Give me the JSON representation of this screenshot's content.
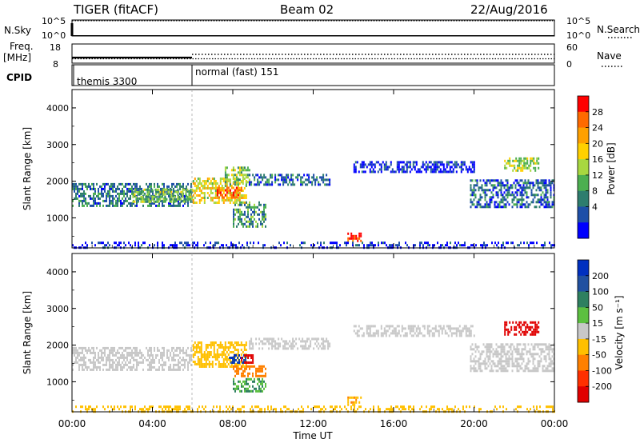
{
  "header": {
    "station": "TIGER (fitACF)",
    "beam": "Beam 02",
    "date": "22/Aug/2016"
  },
  "nsky_panel": {
    "left_label": "N.Sky",
    "right_label": "N.Search",
    "ticks_left": [
      "10^5",
      "10^0"
    ],
    "ticks_right": [
      "10^5",
      "10^0"
    ]
  },
  "freq_panel": {
    "left_label_1": "Freq.",
    "left_label_2": "[MHz]",
    "right_label": "Nave",
    "ticks_left": [
      "18",
      "8"
    ],
    "ticks_right": [
      "60",
      "0"
    ]
  },
  "cpid_panel": {
    "label": "CPID",
    "segments": [
      {
        "name": "themis 3300",
        "start_hour": 0
      },
      {
        "name": "normal (fast) 151",
        "start_hour": 6
      }
    ]
  },
  "power_panel": {
    "ylabel": "Slant Range [km]",
    "yticks": [
      "4000",
      "3000",
      "2000",
      "1000"
    ],
    "colorbar_label": "Power [dB]",
    "colorbar_ticks": [
      "28",
      "24",
      "20",
      "16",
      "12",
      "8",
      "4"
    ],
    "colors": [
      "#0000ff",
      "#1e4fa8",
      "#2e7d6e",
      "#4caf50",
      "#a8d840",
      "#ffd000",
      "#ffa000",
      "#ff6a00",
      "#ff0000"
    ]
  },
  "velocity_panel": {
    "ylabel": "Slant Range [km]",
    "yticks": [
      "4000",
      "3000",
      "2000",
      "1000"
    ],
    "colorbar_label": "Velocity [m s⁻¹]",
    "colorbar_ticks": [
      "200",
      "100",
      "50",
      "15",
      "-15",
      "-50",
      "-100",
      "-200"
    ],
    "colors": [
      "#0030c0",
      "#2050a0",
      "#2e8060",
      "#5cc040",
      "#c8c8c8",
      "#ffc000",
      "#ff8000",
      "#ff3000",
      "#e00000"
    ]
  },
  "xaxis": {
    "ticks": [
      "00:00",
      "04:00",
      "08:00",
      "12:00",
      "16:00",
      "20:00",
      "00:00"
    ],
    "label": "Time UT"
  },
  "chart_data": {
    "type": "heatmap",
    "title": "TIGER (fitACF) Beam 02 22/Aug/2016",
    "xlabel": "Time UT",
    "ylabel": "Slant Range [km]",
    "x_range_hours": [
      0,
      24
    ],
    "y_range_km": [
      180,
      4500
    ],
    "series": [
      {
        "name": "Power [dB]",
        "color_scale": [
          4,
          28
        ],
        "echo_regions": [
          {
            "t_start": 0.0,
            "t_end": 5.9,
            "r_low": 1350,
            "r_high": 1950,
            "value": 10
          },
          {
            "t_start": 3.0,
            "t_end": 6.0,
            "r_low": 1450,
            "r_high": 1800,
            "value": 14
          },
          {
            "t_start": 6.0,
            "t_end": 8.7,
            "r_low": 1400,
            "r_high": 2100,
            "value": 18
          },
          {
            "t_start": 7.2,
            "t_end": 8.4,
            "r_low": 1550,
            "r_high": 1850,
            "value": 24
          },
          {
            "t_start": 7.6,
            "t_end": 8.8,
            "r_low": 1900,
            "r_high": 2400,
            "value": 14
          },
          {
            "t_start": 8.0,
            "t_end": 9.6,
            "r_low": 750,
            "r_high": 1450,
            "value": 12
          },
          {
            "t_start": 8.8,
            "t_end": 12.8,
            "r_low": 1900,
            "r_high": 2200,
            "value": 9
          },
          {
            "t_start": 13.7,
            "t_end": 14.4,
            "r_low": 400,
            "r_high": 600,
            "value": 26
          },
          {
            "t_start": 14.0,
            "t_end": 20.0,
            "r_low": 2250,
            "r_high": 2550,
            "value": 6
          },
          {
            "t_start": 19.8,
            "t_end": 24.0,
            "r_low": 1300,
            "r_high": 2050,
            "value": 9
          },
          {
            "t_start": 21.5,
            "t_end": 23.2,
            "r_low": 2300,
            "r_high": 2650,
            "value": 16
          },
          {
            "t_start": 0.0,
            "t_end": 24.0,
            "r_low": 200,
            "r_high": 350,
            "value": 6
          }
        ]
      },
      {
        "name": "Velocity [m s⁻¹]",
        "color_scale": [
          -200,
          200
        ],
        "echo_regions": [
          {
            "t_start": 0.0,
            "t_end": 5.9,
            "r_low": 1350,
            "r_high": 1950,
            "value": 0
          },
          {
            "t_start": 6.0,
            "t_end": 8.7,
            "r_low": 1400,
            "r_high": 2100,
            "value": -30
          },
          {
            "t_start": 7.8,
            "t_end": 8.6,
            "r_low": 1500,
            "r_high": 1750,
            "value": 150
          },
          {
            "t_start": 8.4,
            "t_end": 9.0,
            "r_low": 1550,
            "r_high": 1750,
            "value": -200
          },
          {
            "t_start": 8.0,
            "t_end": 9.6,
            "r_low": 1150,
            "r_high": 1450,
            "value": -80
          },
          {
            "t_start": 8.0,
            "t_end": 9.6,
            "r_low": 750,
            "r_high": 1100,
            "value": 30
          },
          {
            "t_start": 8.8,
            "t_end": 12.8,
            "r_low": 1900,
            "r_high": 2200,
            "value": 0
          },
          {
            "t_start": 13.7,
            "t_end": 14.4,
            "r_low": 400,
            "r_high": 600,
            "value": -40
          },
          {
            "t_start": 14.0,
            "t_end": 20.0,
            "r_low": 2250,
            "r_high": 2550,
            "value": 0
          },
          {
            "t_start": 19.8,
            "t_end": 24.0,
            "r_low": 1300,
            "r_high": 2050,
            "value": 0
          },
          {
            "t_start": 21.5,
            "t_end": 23.2,
            "r_low": 2300,
            "r_high": 2650,
            "value": -200
          },
          {
            "t_start": 0.0,
            "t_end": 24.0,
            "r_low": 200,
            "r_high": 350,
            "value": -30
          }
        ]
      }
    ]
  }
}
